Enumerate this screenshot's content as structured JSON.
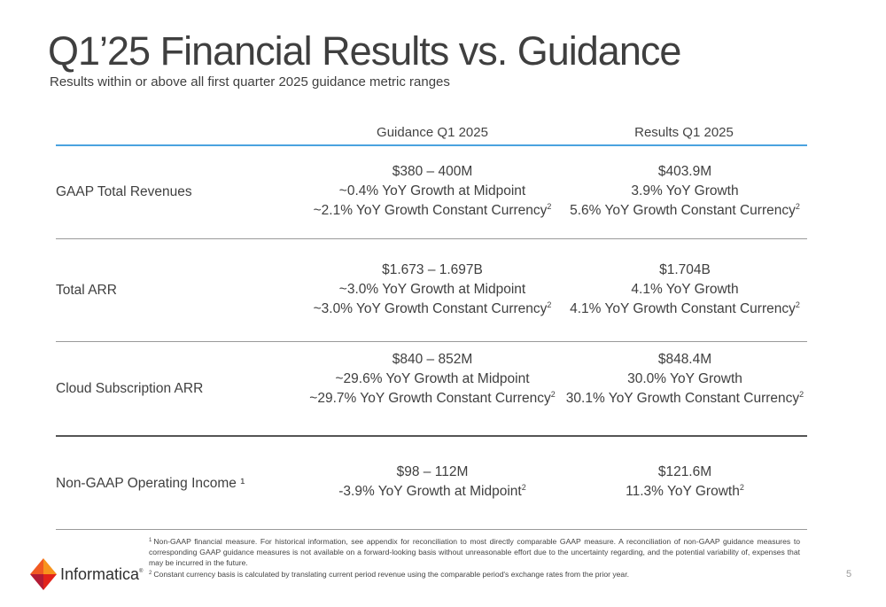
{
  "slide": {
    "title": "Q1’25 Financial Results vs. Guidance",
    "subtitle": "Results within or above all first quarter 2025 guidance metric ranges",
    "page_number": "5"
  },
  "table": {
    "headers": {
      "guidance": "Guidance Q1 2025",
      "results": "Results Q1 2025"
    },
    "rows": [
      {
        "label": "GAAP Total Revenues",
        "guidance": [
          "$380 – 400M",
          "~0.4% YoY Growth at Midpoint",
          "~2.1% YoY Growth Constant Currency"
        ],
        "guidance_sup": [
          "",
          "",
          "2"
        ],
        "results": [
          "$403.9M",
          "3.9% YoY Growth",
          "5.6% YoY Growth Constant Currency"
        ],
        "results_sup": [
          "",
          "",
          "2"
        ]
      },
      {
        "label": "Total ARR",
        "guidance": [
          "$1.673 – 1.697B",
          "~3.0% YoY Growth at Midpoint",
          "~3.0% YoY Growth Constant Currency"
        ],
        "guidance_sup": [
          "",
          "",
          "2"
        ],
        "results": [
          "$1.704B",
          "4.1% YoY Growth",
          "4.1% YoY Growth Constant Currency"
        ],
        "results_sup": [
          "",
          "",
          "2"
        ]
      },
      {
        "label": "Cloud Subscription ARR",
        "guidance": [
          "$840 – 852M",
          "~29.6% YoY Growth at Midpoint",
          "~29.7% YoY Growth Constant Currency"
        ],
        "guidance_sup": [
          "",
          "",
          "2"
        ],
        "results": [
          "$848.4M",
          "30.0% YoY Growth",
          "30.1% YoY Growth Constant Currency"
        ],
        "results_sup": [
          "",
          "",
          "2"
        ]
      },
      {
        "label": "Non-GAAP Operating Income ¹",
        "guidance": [
          "$98 – 112M",
          "-3.9% YoY Growth at Midpoint"
        ],
        "guidance_sup": [
          "",
          "2"
        ],
        "results": [
          "$121.6M",
          "11.3% YoY Growth"
        ],
        "results_sup": [
          "",
          "2"
        ]
      }
    ]
  },
  "footnotes": {
    "fn1_mark": "1",
    "fn1": "Non-GAAP financial measure. For historical information, see appendix for reconciliation to most directly comparable GAAP measure. A reconciliation of non-GAAP guidance measures to corresponding GAAP guidance measures is not available on a forward-looking basis without unreasonable effort due to the uncertainty regarding, and the potential variability of, expenses that may be incurred in the future.",
    "fn2_mark": "2",
    "fn2": "Constant currency basis is calculated by translating current period revenue using the comparable period's exchange rates from the prior year."
  },
  "logo": {
    "name": "Informatica",
    "mark": "®",
    "colors": [
      "#f7941d",
      "#e2231a",
      "#b31b34",
      "#f15a22"
    ]
  },
  "colors": {
    "accent_rule": "#4aa3df",
    "text": "#3f3f3f"
  }
}
